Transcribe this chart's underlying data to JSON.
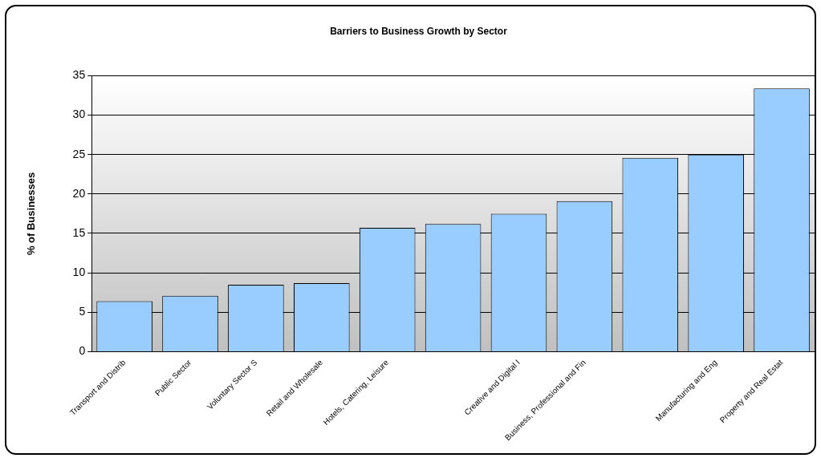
{
  "chart_data": {
    "type": "bar",
    "title": "Barriers to Business Growth by Sector",
    "ylabel": "% of Businesses",
    "categories": [
      "Transport and Distrib",
      "Public Sector",
      "Voluntary Sector S",
      "Retail and Wholesale",
      "Hotels, Catering, Leisure",
      null,
      "Creative and Digital I",
      "Business, Professional and Fin",
      null,
      "Manufacturing and Eng",
      "Property and Real Estat"
    ],
    "values": [
      6.4,
      7.1,
      8.5,
      8.7,
      15.7,
      16.2,
      17.5,
      19.1,
      24.6,
      25.0,
      33.4
    ],
    "color": "#99ccff",
    "ylim": [
      0,
      35
    ],
    "yticks": [
      0,
      5,
      10,
      15,
      20,
      25,
      30,
      35
    ],
    "grid": "y"
  }
}
